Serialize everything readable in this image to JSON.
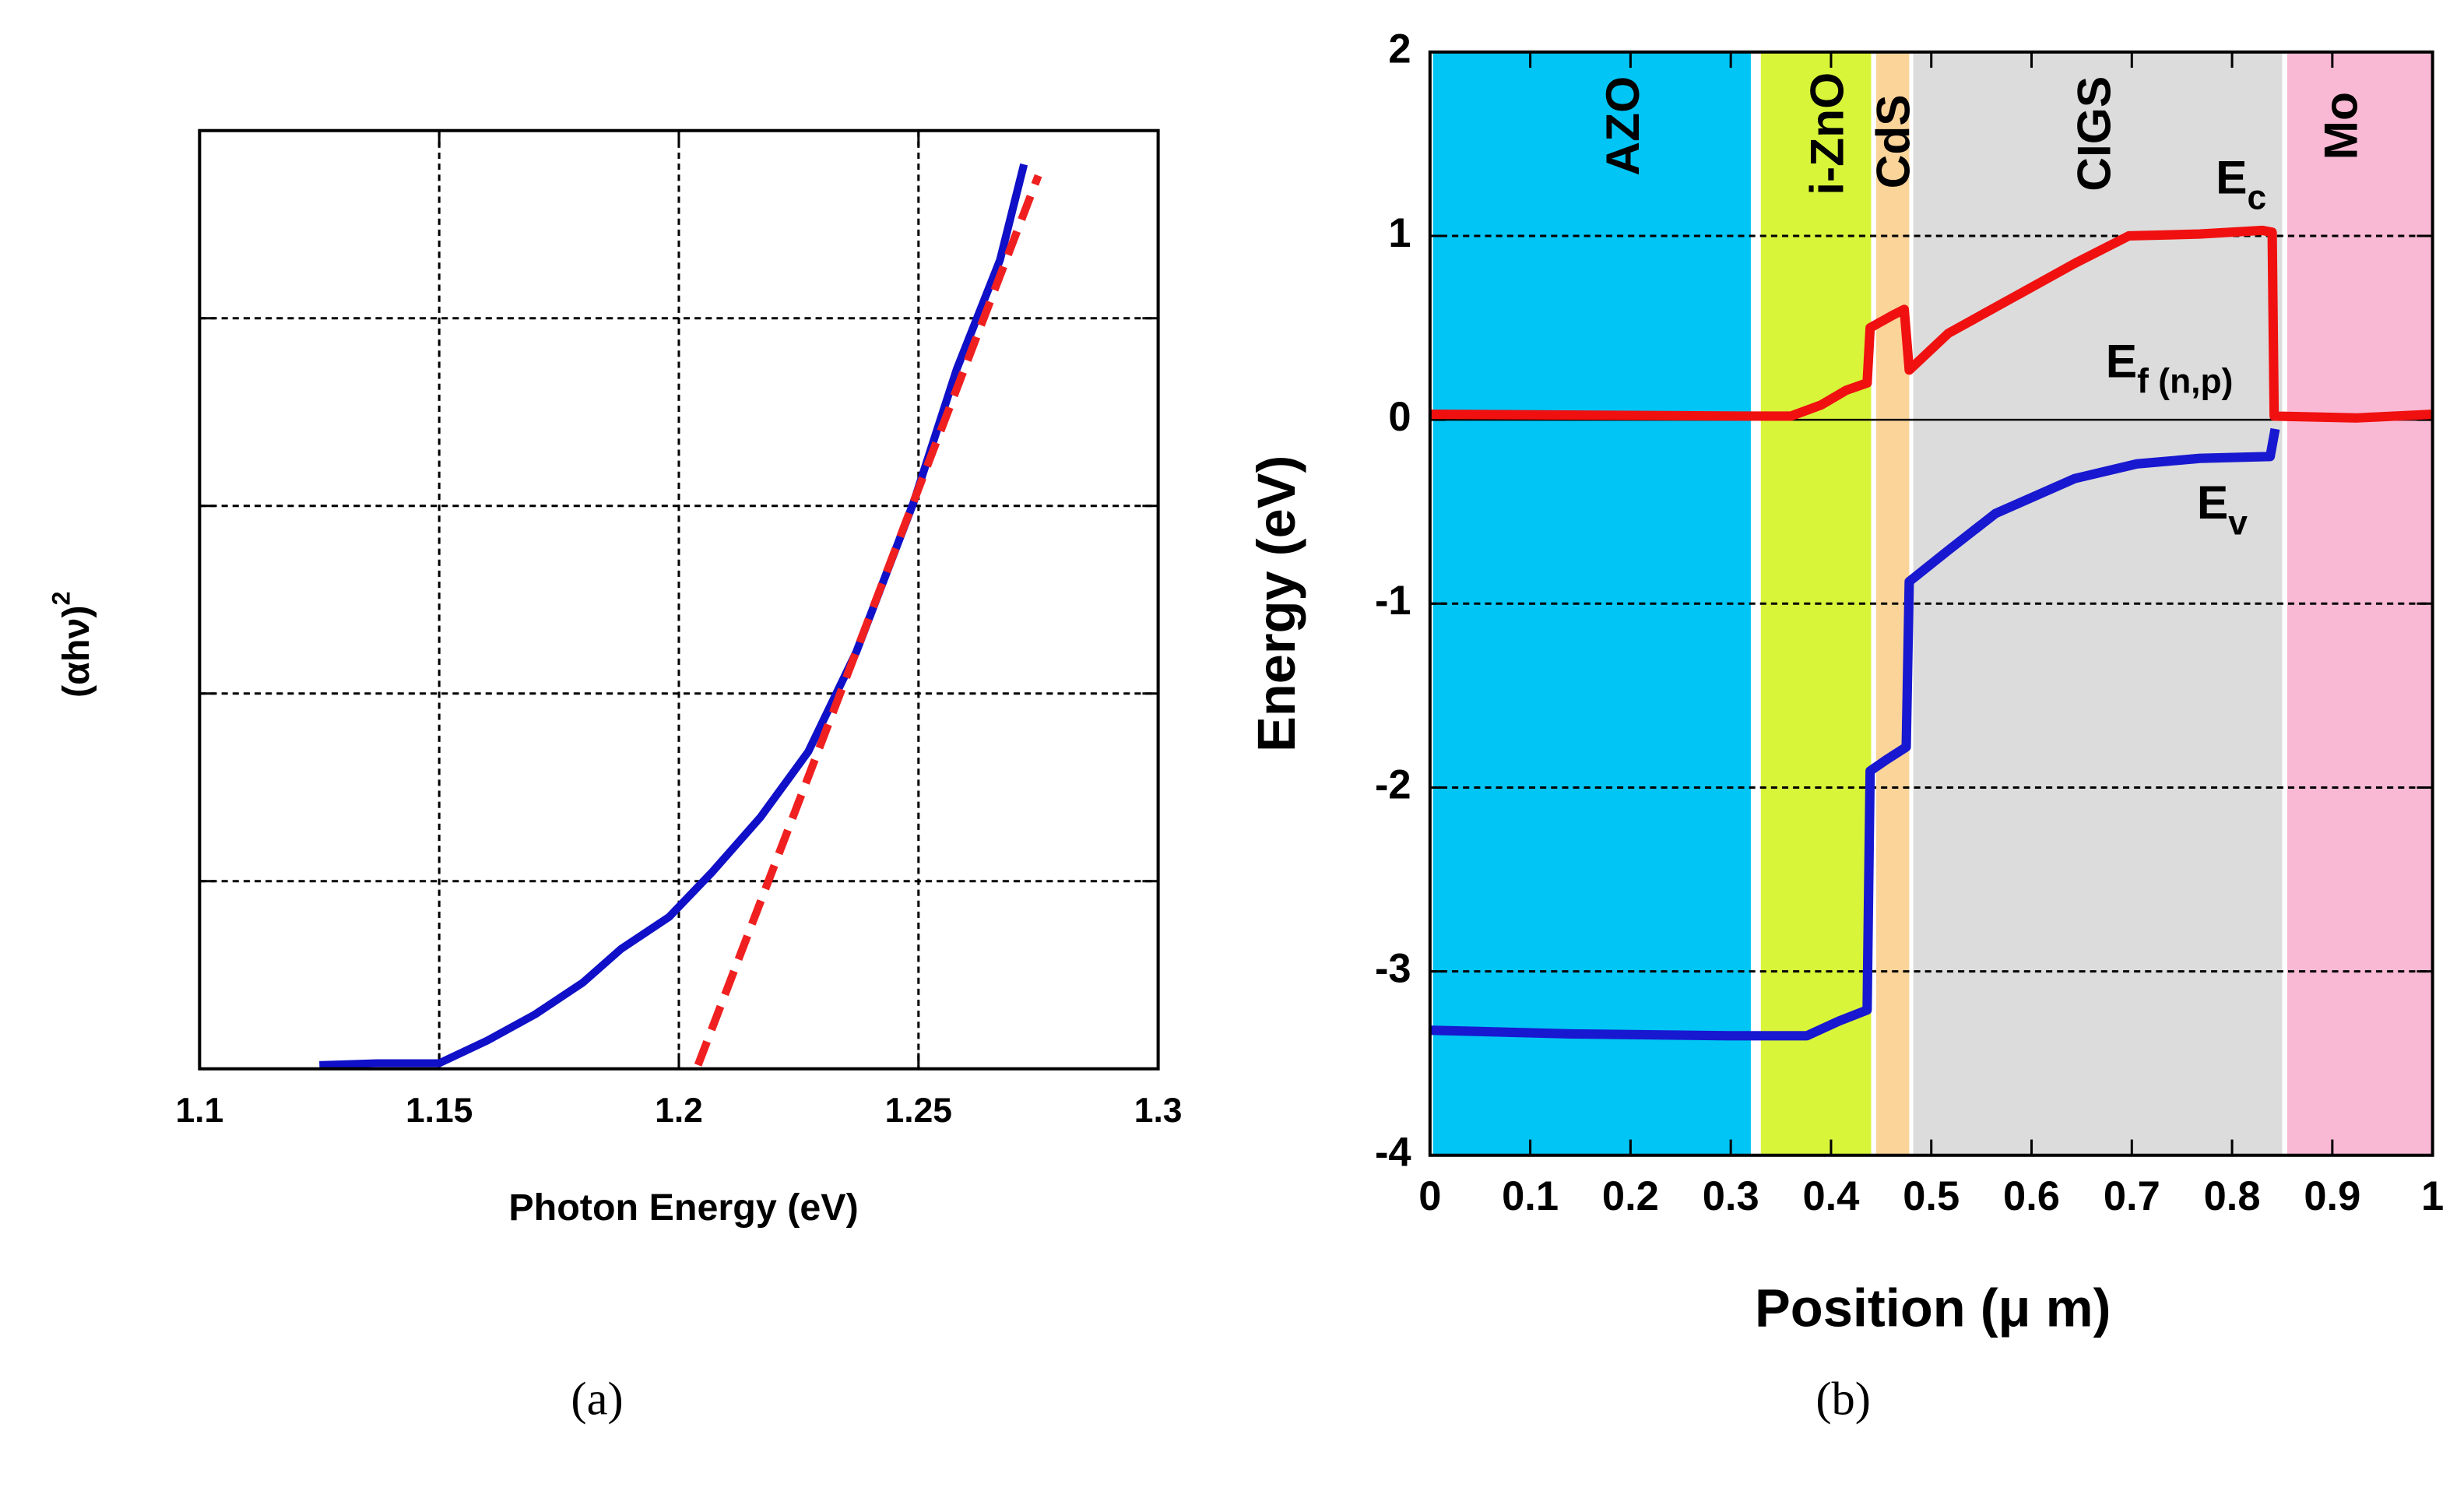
{
  "chart_data": [
    {
      "type": "line",
      "xlabel": "Photon Energy (eV)",
      "ylabel": "(αhν)",
      "ylabel_sup": "2",
      "caption": "(a)",
      "xlim": [
        1.1,
        1.3
      ],
      "xticks": [
        1.1,
        1.15,
        1.2,
        1.25,
        1.3
      ],
      "ylim": [
        0,
        5
      ],
      "yticks": [
        0,
        1,
        2,
        3,
        4,
        5
      ],
      "ytick_labels": false,
      "grid": "both",
      "series": [
        {
          "color": "#1010c8",
          "dash": false,
          "x": [
            1.125,
            1.137,
            1.15,
            1.16,
            1.17,
            1.18,
            1.188,
            1.198,
            1.207,
            1.217,
            1.227,
            1.237,
            1.249,
            1.258,
            1.267,
            1.272
          ],
          "values": [
            0.02,
            0.03,
            0.03,
            0.15,
            0.29,
            0.46,
            0.64,
            0.81,
            1.05,
            1.34,
            1.69,
            2.22,
            3.02,
            3.73,
            4.31,
            4.82
          ]
        },
        {
          "color": "#f02020",
          "dash": true,
          "x": [
            1.204,
            1.275
          ],
          "values": [
            0.02,
            4.76
          ]
        }
      ]
    },
    {
      "type": "line",
      "xlabel": "Position (μ m)",
      "ylabel": "Energy (eV)",
      "caption": "(b)",
      "xlim": [
        0,
        1
      ],
      "xticks": [
        0,
        0.1,
        0.2,
        0.3,
        0.4,
        0.5,
        0.6,
        0.7,
        0.8,
        0.9,
        1
      ],
      "ylim": [
        -4,
        2
      ],
      "yticks": [
        -4,
        -3,
        -2,
        -1,
        0,
        1,
        2
      ],
      "ytick_labels": true,
      "grid": "y",
      "regions": [
        {
          "name": "AZO",
          "start": 0.003,
          "end": 0.32,
          "color": "#00c5f5"
        },
        {
          "name": "i-ZnO",
          "start": 0.33,
          "end": 0.44,
          "color": "#d9f53a"
        },
        {
          "name": "CdS",
          "start": 0.445,
          "end": 0.478,
          "color": "#fbd49a"
        },
        {
          "name": "CIGS",
          "start": 0.482,
          "end": 0.85,
          "color": "#dcdcdc"
        },
        {
          "name": "Mo",
          "start": 0.855,
          "end": 1,
          "color": "#f9b9d4"
        }
      ],
      "annotations": [
        {
          "text": "E",
          "sub": "c"
        },
        {
          "text": "E",
          "sub": "f (n,p)"
        },
        {
          "text": "E",
          "sub": "v"
        }
      ],
      "series": [
        {
          "color": "#f01010",
          "dash": false,
          "x": [
            0,
            0.313,
            0.36,
            0.39,
            0.415,
            0.436,
            0.439,
            0.462,
            0.473,
            0.478,
            0.517,
            0.58,
            0.643,
            0.697,
            0.768,
            0.83,
            0.84,
            0.842,
            0.925,
            1
          ],
          "values": [
            0.03,
            0.02,
            0.02,
            0.08,
            0.16,
            0.2,
            0.5,
            0.57,
            0.6,
            0.27,
            0.47,
            0.66,
            0.85,
            1.0,
            1.01,
            1.03,
            1.02,
            0.02,
            0.01,
            0.03
          ]
        },
        {
          "color": "#1818d0",
          "dash": false,
          "x": [
            0,
            0.141,
            0.298,
            0.376,
            0.408,
            0.436,
            0.439,
            0.455,
            0.475,
            0.478,
            0.517,
            0.564,
            0.643,
            0.705,
            0.768,
            0.838,
            0.843
          ],
          "values": [
            -3.32,
            -3.34,
            -3.35,
            -3.35,
            -3.27,
            -3.21,
            -1.91,
            -1.85,
            -1.78,
            -0.88,
            -0.71,
            -0.51,
            -0.32,
            -0.24,
            -0.21,
            -0.2,
            -0.05
          ]
        }
      ]
    }
  ]
}
